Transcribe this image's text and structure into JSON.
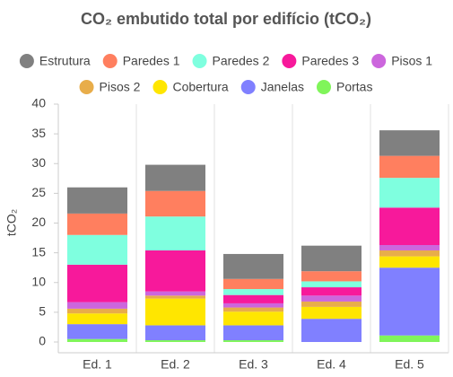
{
  "chart_data": {
    "type": "stacked-bar",
    "title": "CO₂ embutido total por edifício (tCO₂)",
    "y_label": "tCO₂",
    "categories": [
      "Ed. 1",
      "Ed. 2",
      "Ed. 3",
      "Ed. 4",
      "Ed. 5"
    ],
    "series": [
      {
        "name": "Estrutura",
        "color": "#808080",
        "values": [
          4.4,
          4.4,
          4.2,
          4.3,
          4.3
        ]
      },
      {
        "name": "Paredes 1",
        "color": "#ff7f5f",
        "values": [
          3.6,
          4.3,
          1.7,
          1.7,
          3.7
        ]
      },
      {
        "name": "Paredes 2",
        "color": "#7fffdf",
        "values": [
          5.0,
          5.7,
          1.0,
          1.0,
          5.0
        ]
      },
      {
        "name": "Paredes 3",
        "color": "#f7199b",
        "values": [
          6.3,
          6.9,
          1.4,
          1.4,
          6.3
        ]
      },
      {
        "name": "Pisos 1",
        "color": "#cc66dd",
        "values": [
          1.1,
          0.7,
          0.7,
          1.0,
          0.9
        ]
      },
      {
        "name": "Pisos 2",
        "color": "#e8ad4a",
        "values": [
          0.8,
          0.5,
          0.7,
          0.9,
          1.0
        ]
      },
      {
        "name": "Cobertura",
        "color": "#ffe600",
        "values": [
          1.8,
          4.5,
          2.3,
          2.0,
          1.9
        ]
      },
      {
        "name": "Janelas",
        "color": "#8080ff",
        "values": [
          2.5,
          2.5,
          2.5,
          3.9,
          11.4
        ]
      },
      {
        "name": "Portas",
        "color": "#80f55a",
        "values": [
          0.5,
          0.3,
          0.3,
          0,
          1.1
        ]
      }
    ],
    "ylim": [
      0,
      40
    ],
    "yticks": [
      0,
      5,
      10,
      15,
      20,
      25,
      30,
      35,
      40
    ],
    "legend": "top"
  }
}
